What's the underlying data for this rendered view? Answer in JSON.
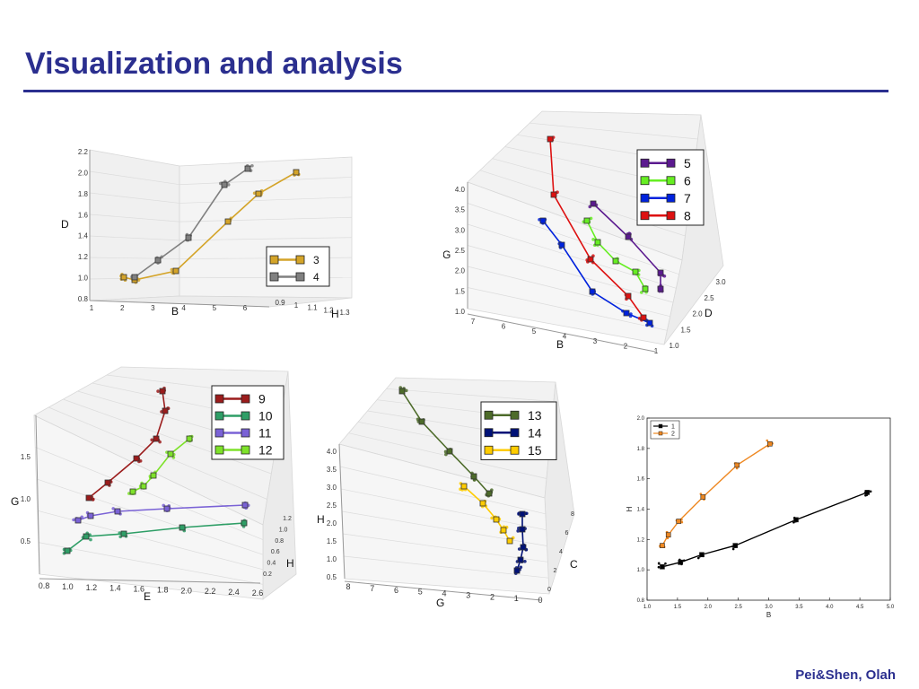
{
  "title": "Visualization and analysis",
  "footer": "Pei&Shen, Olah",
  "colors": {
    "accent": "#2b2f8f"
  },
  "chart_data": [
    {
      "id": "p1",
      "type": "line-3d",
      "axis_labels": {
        "x": "B",
        "y": "D",
        "z": "H"
      },
      "y_ticks": [
        "2.2",
        "2.0",
        "1.8",
        "1.6",
        "1.4",
        "1.2",
        "1.0",
        "0.8"
      ],
      "x_ticks": [
        "1",
        "2",
        "3",
        "4",
        "5",
        "6"
      ],
      "z_ticks": [
        "0.9",
        "1",
        "1.1",
        "1.2",
        "1.3"
      ],
      "series": [
        {
          "name": "3",
          "color": "#d4a429",
          "path": [
            [
              138,
              309
            ],
            [
              150,
              312
            ],
            [
              196,
              302
            ],
            [
              254,
              247
            ],
            [
              288,
              216
            ],
            [
              330,
              192
            ]
          ]
        },
        {
          "name": "4",
          "color": "#808080",
          "path": [
            [
              150,
              309
            ],
            [
              176,
              290
            ],
            [
              210,
              265
            ],
            [
              250,
              206
            ],
            [
              276,
              188
            ]
          ]
        }
      ]
    },
    {
      "id": "p2",
      "type": "line-3d",
      "axis_labels": {
        "x": "B",
        "y": "G",
        "z": "D"
      },
      "y_ticks": [
        "4.0",
        "3.5",
        "3.0",
        "2.5",
        "2.0",
        "1.5",
        "1.0"
      ],
      "x_ticks": [
        "7",
        "6",
        "5",
        "4",
        "3",
        "2",
        "1"
      ],
      "z_ticks": [
        "1.0",
        "1.5",
        "2.0",
        "2.5",
        "3.0"
      ],
      "series": [
        {
          "name": "5",
          "color": "#5b1a8f",
          "path": [
            [
              661,
              227
            ],
            [
              700,
              264
            ],
            [
              736,
              304
            ],
            [
              736,
              322
            ]
          ]
        },
        {
          "name": "6",
          "color": "#66ee22",
          "path": [
            [
              654,
              246
            ],
            [
              666,
              270
            ],
            [
              686,
              291
            ],
            [
              708,
              303
            ],
            [
              719,
              322
            ]
          ]
        },
        {
          "name": "7",
          "color": "#0022dd",
          "path": [
            [
              605,
              246
            ],
            [
              626,
              273
            ],
            [
              660,
              325
            ],
            [
              698,
              349
            ],
            [
              724,
              360
            ]
          ]
        },
        {
          "name": "8",
          "color": "#dd1111",
          "path": [
            [
              613,
              155
            ],
            [
              617,
              217
            ],
            [
              658,
              289
            ],
            [
              700,
              330
            ],
            [
              717,
              354
            ]
          ]
        }
      ]
    },
    {
      "id": "p3",
      "type": "line-3d",
      "axis_labels": {
        "x": "E",
        "y": "G",
        "z": "H"
      },
      "y_ticks": [
        "1.5",
        "1.0",
        "0.5"
      ],
      "x_ticks": [
        "0.8",
        "1.0",
        "1.2",
        "1.4",
        "1.6",
        "1.8",
        "2.0",
        "2.2",
        "2.4",
        "2.6"
      ],
      "z_ticks": [
        "0.2",
        "0.4",
        "0.6",
        "0.8",
        "1.0",
        "1.2"
      ],
      "series": [
        {
          "name": "9",
          "color": "#9b1c1c",
          "path": [
            [
              99,
              555
            ],
            [
              120,
              538
            ],
            [
              152,
              511
            ],
            [
              174,
              489
            ],
            [
              184,
              458
            ],
            [
              181,
              436
            ]
          ]
        },
        {
          "name": "10",
          "color": "#2e9e66",
          "path": [
            [
              75,
              614
            ],
            [
              96,
              598
            ],
            [
              138,
              595
            ],
            [
              203,
              588
            ],
            [
              272,
              583
            ]
          ]
        },
        {
          "name": "11",
          "color": "#7a62d6",
          "path": [
            [
              87,
              580
            ],
            [
              101,
              575
            ],
            [
              131,
              570
            ],
            [
              186,
              567
            ],
            [
              273,
              563
            ]
          ]
        },
        {
          "name": "12",
          "color": "#7ee22a",
          "path": [
            [
              148,
              548
            ],
            [
              160,
              542
            ],
            [
              171,
              530
            ],
            [
              190,
              506
            ],
            [
              211,
              489
            ]
          ]
        }
      ]
    },
    {
      "id": "p4",
      "type": "line-3d",
      "axis_labels": {
        "x": "G",
        "y": "H",
        "z": "C"
      },
      "y_ticks": [
        "4.0",
        "3.5",
        "3.0",
        "2.5",
        "2.0",
        "1.5",
        "1.0",
        "0.5"
      ],
      "x_ticks": [
        "8",
        "7",
        "6",
        "5",
        "4",
        "3",
        "2",
        "1",
        "0"
      ],
      "z_ticks": [
        "0",
        "2",
        "4",
        "6",
        "8"
      ],
      "series": [
        {
          "name": "13",
          "color": "#4d6b2a",
          "path": [
            [
              448,
              436
            ],
            [
              470,
              470
            ],
            [
              501,
              503
            ],
            [
              528,
              531
            ],
            [
              545,
              550
            ]
          ]
        },
        {
          "name": "14",
          "color": "#001177",
          "path": [
            [
              582,
              573
            ],
            [
              582,
              590
            ],
            [
              583,
              610
            ],
            [
              580,
              624
            ],
            [
              576,
              636
            ]
          ]
        },
        {
          "name": "15",
          "color": "#ffcc00",
          "path": [
            [
              517,
              542
            ],
            [
              538,
              561
            ],
            [
              553,
              579
            ],
            [
              561,
              591
            ],
            [
              568,
              603
            ]
          ]
        }
      ]
    },
    {
      "id": "p5",
      "type": "line",
      "xlabel": "B",
      "ylabel": "H",
      "xlim": [
        1.0,
        5.0
      ],
      "ylim": [
        0.8,
        2.0
      ],
      "x_ticks": [
        "1.0",
        "1.5",
        "2.0",
        "2.5",
        "3.0",
        "3.5",
        "4.0",
        "4.5",
        "5.0"
      ],
      "y_ticks": [
        "0.8",
        "1.0",
        "1.2",
        "1.4",
        "1.6",
        "1.8",
        "2.0"
      ],
      "legend": "top-left",
      "series": [
        {
          "name": "1",
          "color": "#000000",
          "points": [
            [
              1.25,
              1.02
            ],
            [
              1.55,
              1.05
            ],
            [
              1.9,
              1.1
            ],
            [
              2.45,
              1.16
            ],
            [
              3.45,
              1.33
            ],
            [
              4.62,
              1.51
            ]
          ]
        },
        {
          "name": "2",
          "color": "#ee8822",
          "points": [
            [
              1.25,
              1.16
            ],
            [
              1.35,
              1.23
            ],
            [
              1.52,
              1.32
            ],
            [
              1.92,
              1.48
            ],
            [
              2.48,
              1.69
            ],
            [
              3.02,
              1.83
            ]
          ]
        }
      ]
    }
  ]
}
